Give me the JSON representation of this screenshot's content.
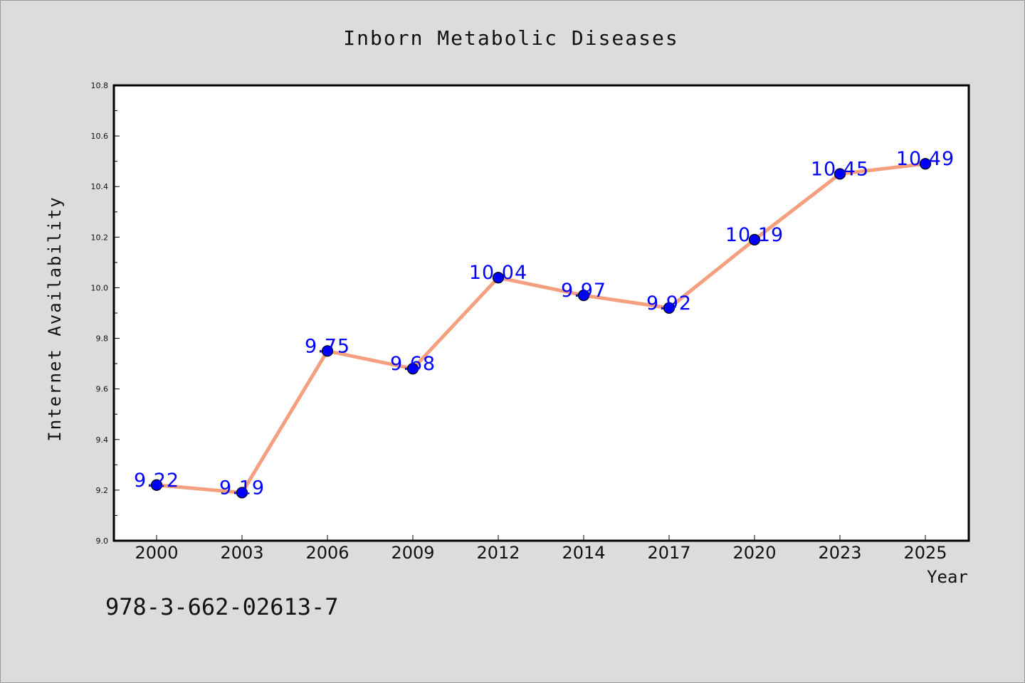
{
  "chart_data": {
    "type": "line",
    "title": "Inborn Metabolic Diseases",
    "xlabel": "Year",
    "ylabel": "Internet Availability",
    "categories": [
      "2000",
      "2003",
      "2006",
      "2009",
      "2012",
      "2014",
      "2017",
      "2020",
      "2023",
      "2025"
    ],
    "series": [
      {
        "values": [
          9.22,
          9.19,
          9.75,
          9.68,
          10.04,
          9.97,
          9.92,
          10.19,
          10.45,
          10.49
        ],
        "labels": [
          "9.22",
          "9.19",
          "9.75",
          "9.68",
          "10.04",
          "9.97",
          "9.92",
          "10.19",
          "10.45",
          "10.49"
        ],
        "line_color": "#f4a07f",
        "marker_color": "#0000ff"
      }
    ],
    "ylim": [
      9.0,
      10.8
    ],
    "yticks": [
      "9.0",
      "9.2",
      "9.4",
      "9.6",
      "9.8",
      "10.0",
      "10.2",
      "10.4",
      "10.6",
      "10.8"
    ],
    "grid": false,
    "label_color": "#0000ff"
  },
  "footer": {
    "isbn": "978-3-662-02613-7"
  }
}
